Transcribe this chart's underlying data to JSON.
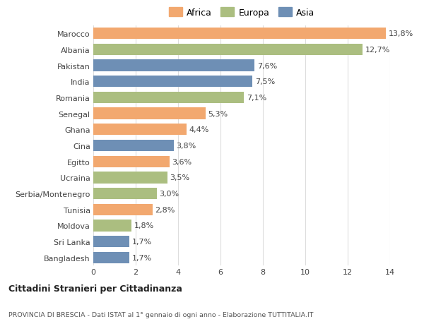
{
  "categories": [
    "Bangladesh",
    "Sri Lanka",
    "Moldova",
    "Tunisia",
    "Serbia/Montenegro",
    "Ucraina",
    "Egitto",
    "Cina",
    "Ghana",
    "Senegal",
    "Romania",
    "India",
    "Pakistan",
    "Albania",
    "Marocco"
  ],
  "values": [
    1.7,
    1.7,
    1.8,
    2.8,
    3.0,
    3.5,
    3.6,
    3.8,
    4.4,
    5.3,
    7.1,
    7.5,
    7.6,
    12.7,
    13.8
  ],
  "continents": [
    "Asia",
    "Asia",
    "Europa",
    "Africa",
    "Europa",
    "Europa",
    "Africa",
    "Asia",
    "Africa",
    "Africa",
    "Europa",
    "Asia",
    "Asia",
    "Europa",
    "Africa"
  ],
  "labels": [
    "1,7%",
    "1,7%",
    "1,8%",
    "2,8%",
    "3,0%",
    "3,5%",
    "3,6%",
    "3,8%",
    "4,4%",
    "5,3%",
    "7,1%",
    "7,5%",
    "7,6%",
    "12,7%",
    "13,8%"
  ],
  "colors": {
    "Africa": "#F2A86F",
    "Europa": "#ABBE80",
    "Asia": "#6E8FB5"
  },
  "legend_labels": [
    "Africa",
    "Europa",
    "Asia"
  ],
  "legend_colors": [
    "#F2A86F",
    "#ABBE80",
    "#6E8FB5"
  ],
  "xlim": [
    0,
    14
  ],
  "xticks": [
    0,
    2,
    4,
    6,
    8,
    10,
    12,
    14
  ],
  "title_main": "Cittadini Stranieri per Cittadinanza",
  "title_sub": "PROVINCIA DI BRESCIA - Dati ISTAT al 1° gennaio di ogni anno - Elaborazione TUTTITALIA.IT",
  "background_color": "#ffffff",
  "bar_height": 0.72,
  "label_fontsize": 8.0,
  "tick_fontsize": 8.0,
  "legend_fontsize": 9.0
}
